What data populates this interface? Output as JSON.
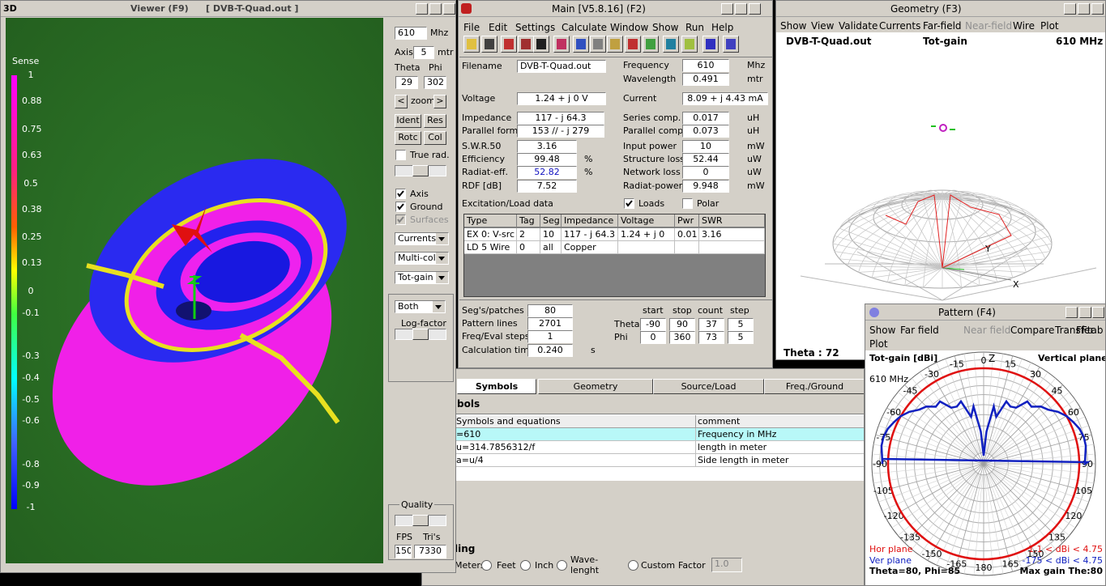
{
  "viewer": {
    "title": "Viewer (F9)",
    "file": "[  DVB-T-Quad.out ]",
    "corner": "3D",
    "sense": "Sense",
    "sense_ticks": [
      1,
      0.88,
      0.75,
      0.63,
      0.5,
      0.38,
      0.25,
      0.13,
      0,
      -0.1,
      -0.3,
      -0.4,
      -0.5,
      -0.6,
      -0.8,
      -0.9,
      -1
    ],
    "freq": "610",
    "freq_unit": "Mhz",
    "axis": "Axis",
    "axis_value": "5",
    "axis_unit": "mtr",
    "theta": "Theta",
    "phi": "Phi",
    "theta_value": "29",
    "phi_value": "302",
    "zoom_prev": "<",
    "zoom": "zoom",
    "zoom_next": ">",
    "buttons": [
      "Ident",
      "Res",
      "Rotc",
      "Col"
    ],
    "true_rad": "True rad.",
    "checks": [
      {
        "label": "Axis",
        "checked": true
      },
      {
        "label": "Ground",
        "checked": true
      },
      {
        "label": "Surfaces",
        "checked": true,
        "disabled": true
      }
    ],
    "selects": [
      "Currents",
      "Multi-colo",
      "Tot-gain"
    ],
    "plane": "Both",
    "log_factor": "Log-factor",
    "quality": "Quality",
    "fps": "FPS",
    "tris": "Tri's",
    "fps_value": "150",
    "tris_value": "7330"
  },
  "main": {
    "title": "Main [V5.8.16]  (F2)",
    "menu": [
      "File",
      "Edit",
      "Settings",
      "Calculate",
      "Window",
      "Show",
      "Run",
      "Help"
    ],
    "left": [
      {
        "label": "Filename",
        "value": "DVB-T-Quad.out"
      },
      {
        "label": "Voltage",
        "value": "1.24 + j 0 V"
      },
      {
        "label": "Impedance",
        "value": "117 - j 64.3"
      },
      {
        "label": "Parallel form",
        "value": "153 // - j 279"
      },
      {
        "label": "S.W.R.50",
        "value": "3.16"
      },
      {
        "label": "Efficiency",
        "value": "99.48",
        "unit": "%"
      },
      {
        "label": "Radiat-eff.",
        "value": "52.82",
        "unit": "%"
      },
      {
        "label": "RDF [dB]",
        "value": "7.52"
      }
    ],
    "right": [
      {
        "label": "Frequency",
        "value": "610",
        "unit": "Mhz"
      },
      {
        "label": "Wavelength",
        "value": "0.491",
        "unit": "mtr"
      },
      {
        "label": "Current",
        "value": "8.09 + j 4.43 mA"
      },
      {
        "label": "Series comp.",
        "value": "0.017",
        "unit": "uH"
      },
      {
        "label": "Parallel comp.",
        "value": "0.073",
        "unit": "uH"
      },
      {
        "label": "Input power",
        "value": "10",
        "unit": "mW"
      },
      {
        "label": "Structure loss",
        "value": "52.44",
        "unit": "uW"
      },
      {
        "label": "Network loss",
        "value": "0",
        "unit": "uW"
      },
      {
        "label": "Radiat-power",
        "value": "9.948",
        "unit": "mW"
      }
    ],
    "excitation": "Excitation/Load data",
    "loads": "Loads",
    "polar": "Polar",
    "table": {
      "columns": [
        "Type",
        "Tag",
        "Seg",
        "Impedance",
        "Voltage",
        "Pwr",
        "SWR"
      ],
      "rows": [
        [
          "EX 0: V-src",
          "2",
          "10",
          "117 - j 64.3",
          "1.24 + j 0",
          "0.01",
          "3.16"
        ],
        [
          "LD 5 Wire",
          "0",
          "all",
          "Copper"
        ]
      ]
    },
    "settings": [
      {
        "label": "Seg's/patches",
        "value": "80"
      },
      {
        "label": "Pattern lines",
        "value": "2701"
      },
      {
        "label": "Freq/Eval steps",
        "value": "1"
      },
      {
        "label": "Calculation time",
        "value": "0.240",
        "unit": "s"
      }
    ],
    "range_columns": [
      "start",
      "stop",
      "count",
      "step"
    ],
    "ranges": [
      {
        "label": "Theta",
        "values": [
          "-90",
          "90",
          "37",
          "5"
        ]
      },
      {
        "label": "Phi",
        "values": [
          "0",
          "360",
          "73",
          "5"
        ]
      }
    ]
  },
  "geometry": {
    "title": "Geometry    (F3)",
    "menu": [
      {
        "label": "Show"
      },
      {
        "label": "View"
      },
      {
        "label": "Validate"
      },
      {
        "label": "Currents"
      },
      {
        "label": "Far-field"
      },
      {
        "label": "Near-field",
        "disabled": true
      },
      {
        "label": "Wire"
      },
      {
        "label": "Plot"
      }
    ],
    "file": "DVB-T-Quad.out",
    "quantity": "Tot-gain",
    "freq": "610 MHz",
    "theta": "Theta : 72",
    "axis_y": "Y",
    "axis_x": "X"
  },
  "pattern": {
    "title": "Pattern    (F4)",
    "menu": [
      {
        "label": "Show"
      },
      {
        "label": "Far field"
      },
      {
        "label": "Near field",
        "disabled": true
      },
      {
        "label": "Compare"
      },
      {
        "label": "Transfer"
      },
      {
        "label": "FFtab"
      },
      {
        "label": "Plot"
      }
    ],
    "quantity": "Tot-gain [dBi]",
    "plane": "Vertical plane",
    "freq": "610 MHz",
    "z": "Z",
    "angles": [
      0,
      15,
      30,
      45,
      60,
      75,
      90,
      105,
      120,
      135,
      150,
      165,
      180,
      -165,
      -150,
      -135,
      -120,
      -105,
      -90,
      -75,
      -60,
      -45,
      -30,
      -15
    ],
    "hor": "Hor plane",
    "hor_range": "1.1 < dBi < 4.75",
    "ver": "Ver plane",
    "ver_range": "-175 < dBi < 4.75",
    "cursor": "Theta=80, Phi=85",
    "max_gain": "Max gain The:80"
  },
  "symbols": {
    "tabs": [
      "Symbols",
      "Geometry",
      "Source/Load",
      "Freq./Ground"
    ],
    "heading": "bols",
    "columns": [
      "Symbols and equations",
      "comment"
    ],
    "rows": [
      [
        "=610",
        "Frequency in MHz"
      ],
      [
        "u=314.7856312/f",
        "length in meter"
      ],
      [
        "a=u/4",
        "Side length in meter"
      ]
    ],
    "scaling": "ling",
    "units": [
      "Meters",
      "Feet",
      "Inch",
      "Wave-lenght"
    ],
    "custom": "Custom",
    "factor": "Factor",
    "factor_value": "1.0"
  }
}
